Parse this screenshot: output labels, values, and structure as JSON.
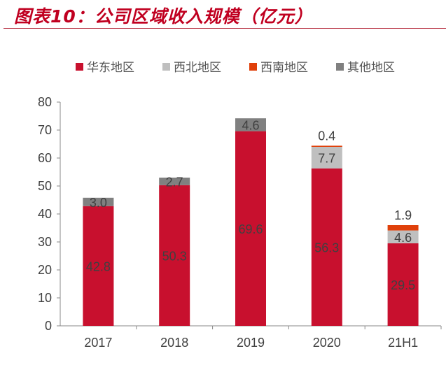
{
  "title": "图表10：公司区域收入规模（亿元）",
  "chart_data": {
    "type": "bar",
    "stacked": true,
    "title": "图表10：公司区域收入规模（亿元）",
    "categories": [
      "2017",
      "2018",
      "2019",
      "2020",
      "21H1"
    ],
    "series": [
      {
        "name": "华东地区",
        "color": "#C8102E",
        "values": [
          42.8,
          50.3,
          69.6,
          56.3,
          29.5
        ]
      },
      {
        "name": "西北地区",
        "color": "#BFBFBF",
        "values": [
          null,
          null,
          null,
          7.7,
          4.6
        ]
      },
      {
        "name": "西南地区",
        "color": "#E0400A",
        "values": [
          null,
          null,
          null,
          0.4,
          1.9
        ]
      },
      {
        "name": "其他地区",
        "color": "#808080",
        "values": [
          3.0,
          2.7,
          4.6,
          null,
          null
        ]
      }
    ],
    "value_labels": [
      [
        "42.8",
        "50.3",
        "69.6",
        "56.3",
        "29.5"
      ],
      [
        null,
        null,
        null,
        "7.7",
        "4.6"
      ],
      [
        null,
        null,
        null,
        "0.4",
        "1.9"
      ],
      [
        "3.0",
        "2.7",
        "4.6",
        null,
        null
      ]
    ],
    "ylim": [
      0,
      80
    ],
    "yticks": [
      "0",
      "10",
      "20",
      "30",
      "40",
      "50",
      "60",
      "70",
      "80"
    ],
    "xlabel": "",
    "ylabel": "",
    "grid": false,
    "legend_position": "top"
  }
}
